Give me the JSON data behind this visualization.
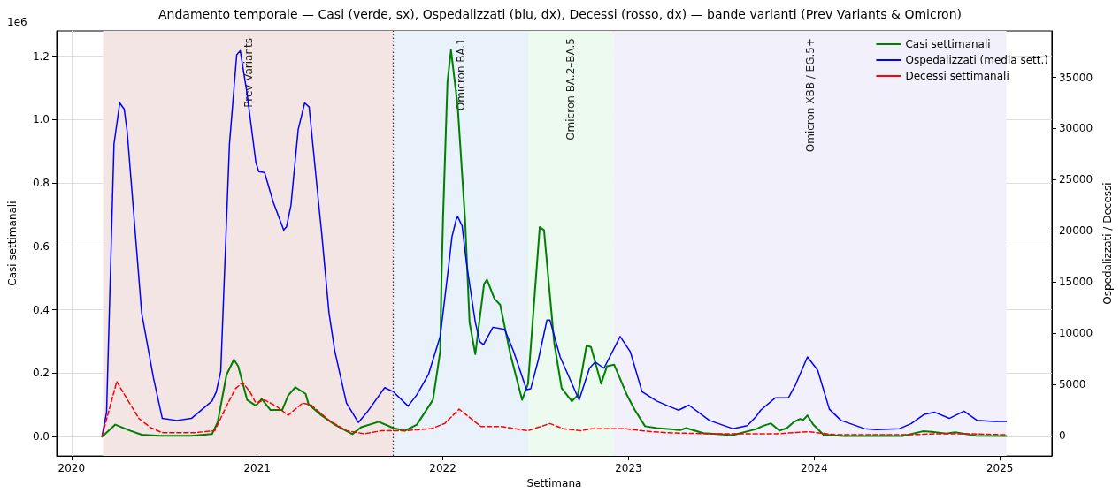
{
  "chart_data": {
    "type": "line",
    "title": "Andamento temporale — Casi (verde, sx), Ospedalizzati (blu, dx), Decessi (rosso, dx) — bande varianti (Prev Variants & Omicron)",
    "xlabel": "Settimana",
    "ylabel": "Casi settimanali",
    "y2label": "Ospedalizzati / Decessi",
    "annotations": [
      "1e6"
    ],
    "xlim": [
      2019.92,
      2025.28
    ],
    "xticks": [
      2020,
      2021,
      2022,
      2023,
      2024,
      2025
    ],
    "ylim": [
      -0.061,
      1.28
    ],
    "yticks": [
      {
        "value": 0,
        "label": "0.0"
      },
      0.2,
      0.4,
      0.6,
      0.8,
      {
        "value": 1,
        "label": "1.0"
      },
      1.2
    ],
    "y2lim": [
      -1970,
      39530
    ],
    "y2ticks": [
      0,
      5000,
      10000,
      15000,
      20000,
      25000,
      30000,
      35000
    ],
    "grid": true,
    "legend": "top right",
    "marker": "none",
    "bands": [
      {
        "axis": "x",
        "from": 2020.17,
        "to": 2021.735,
        "label": "Prev Variants",
        "color": "#f4e5e5"
      },
      {
        "axis": "x",
        "from": 2021.735,
        "to": 2022.46,
        "label": "Omicron BA.1",
        "color": "#e9f1fb"
      },
      {
        "axis": "x",
        "from": 2022.46,
        "to": 2022.92,
        "label": "Omicron BA.2–BA.5",
        "color": "#edfaf0"
      },
      {
        "axis": "x",
        "from": 2022.92,
        "to": 2025.035,
        "label": "Omicron XBB / EG.5+",
        "color": "#f2f0fb"
      }
    ],
    "ref_lines": [
      {
        "axis": "x",
        "value": 2021.735,
        "label": null,
        "color": "#333333",
        "line_style": "dotted"
      }
    ],
    "series": [
      {
        "name": "Casi settimanali",
        "color": "#008000",
        "line_style": "solid",
        "x": [
          2020.165,
          2020.236,
          2020.315,
          2020.378,
          2020.473,
          2020.646,
          2020.757,
          2020.788,
          2020.835,
          2020.875,
          2020.898,
          2020.946,
          2020.993,
          2021.025,
          2021.072,
          2021.135,
          2021.167,
          2021.206,
          2021.261,
          2021.277,
          2021.34,
          2021.418,
          2021.513,
          2021.56,
          2021.655,
          2021.734,
          2021.797,
          2021.86,
          2021.947,
          2021.986,
          2021.993,
          2022.001,
          2022.025,
          2022.044,
          2022.08,
          2022.12,
          2022.144,
          2022.175,
          2022.222,
          2022.238,
          2022.278,
          2022.309,
          2022.364,
          2022.427,
          2022.459,
          2022.522,
          2022.545,
          2022.6,
          2022.64,
          2022.695,
          2022.727,
          2022.774,
          2022.798,
          2022.853,
          2022.884,
          2022.923,
          2022.993,
          2023.034,
          2023.089,
          2023.152,
          2023.278,
          2023.31,
          2023.404,
          2023.562,
          2023.688,
          2023.72,
          2023.767,
          2023.814,
          2023.853,
          2023.893,
          2023.924,
          2023.94,
          2023.964,
          2023.995,
          2024.05,
          2024.16,
          2024.476,
          2024.586,
          2024.634,
          2024.712,
          2024.76,
          2024.87,
          2025.035
        ],
        "values": [
          0,
          0.038,
          0.019,
          0.006,
          0.003,
          0.003,
          0.008,
          0.047,
          0.195,
          0.243,
          0.222,
          0.116,
          0.098,
          0.119,
          0.084,
          0.084,
          0.13,
          0.156,
          0.135,
          0.102,
          0.07,
          0.038,
          0.008,
          0.03,
          0.047,
          0.027,
          0.019,
          0.038,
          0.116,
          0.269,
          0.5,
          0.684,
          1.118,
          1.22,
          1.044,
          0.684,
          0.361,
          0.26,
          0.481,
          0.495,
          0.435,
          0.416,
          0.26,
          0.116,
          0.167,
          0.661,
          0.652,
          0.296,
          0.153,
          0.112,
          0.13,
          0.287,
          0.283,
          0.167,
          0.222,
          0.227,
          0.13,
          0.084,
          0.033,
          0.027,
          0.021,
          0.027,
          0.011,
          0.005,
          0.024,
          0.033,
          0.042,
          0.019,
          0.027,
          0.047,
          0.056,
          0.052,
          0.067,
          0.038,
          0.006,
          0.002,
          0.002,
          0.017,
          0.015,
          0.01,
          0.014,
          0.003,
          0.002
        ]
      },
      {
        "name": "Ospedalizzati (media sett.)",
        "color": "#0000ff",
        "line_style": "solid",
        "axis": "y2",
        "x": [
          2020.165,
          2020.189,
          2020.229,
          2020.26,
          2020.284,
          2020.3,
          2020.378,
          2020.441,
          2020.489,
          2020.567,
          2020.646,
          2020.757,
          2020.78,
          2020.804,
          2020.851,
          2020.89,
          2020.909,
          2020.946,
          2020.993,
          2021.009,
          2021.04,
          2021.087,
          2021.143,
          2021.158,
          2021.182,
          2021.221,
          2021.256,
          2021.28,
          2021.324,
          2021.348,
          2021.387,
          2021.418,
          2021.481,
          2021.545,
          2021.592,
          2021.687,
          2021.734,
          2021.813,
          2021.86,
          2021.923,
          2021.986,
          2022.033,
          2022.049,
          2022.072,
          2022.08,
          2022.104,
          2022.128,
          2022.175,
          2022.199,
          2022.219,
          2022.27,
          2022.333,
          2022.38,
          2022.451,
          2022.474,
          2022.514,
          2022.561,
          2022.577,
          2022.632,
          2022.734,
          2022.79,
          2022.821,
          2022.868,
          2022.955,
          2023.01,
          2023.073,
          2023.152,
          2023.215,
          2023.27,
          2023.325,
          2023.436,
          2023.562,
          2023.64,
          2023.688,
          2023.712,
          2023.79,
          2023.861,
          2023.9,
          2023.964,
          2024.019,
          2024.082,
          2024.145,
          2024.271,
          2024.334,
          2024.46,
          2024.523,
          2024.594,
          2024.649,
          2024.728,
          2024.807,
          2024.878,
          2024.965,
          2025.035
        ],
        "values": [
          0,
          2300,
          28500,
          32500,
          31900,
          29700,
          12000,
          5700,
          1700,
          1500,
          1700,
          3400,
          4300,
          6300,
          28500,
          37200,
          37600,
          33400,
          26700,
          25800,
          25700,
          22800,
          20100,
          20400,
          22500,
          29900,
          32500,
          32100,
          24000,
          19700,
          12000,
          8300,
          3200,
          1300,
          2300,
          4700,
          4300,
          2900,
          4000,
          6000,
          9700,
          16800,
          19400,
          21100,
          21400,
          20500,
          16800,
          11100,
          9200,
          8900,
          10600,
          10400,
          8300,
          4500,
          4600,
          7400,
          11300,
          11300,
          7700,
          3500,
          6600,
          7200,
          6600,
          9700,
          8200,
          4300,
          3400,
          2900,
          2500,
          3000,
          1500,
          700,
          1000,
          1900,
          2500,
          3700,
          3700,
          5000,
          7700,
          6400,
          2600,
          1500,
          700,
          600,
          700,
          1200,
          2100,
          2300,
          1700,
          2400,
          1500,
          1400,
          1400
        ]
      },
      {
        "name": "Decessi settimanali",
        "color": "#ff0000",
        "line_style": "dashed",
        "axis": "y2",
        "x": [
          2020.165,
          2020.244,
          2020.276,
          2020.363,
          2020.426,
          2020.489,
          2020.662,
          2020.772,
          2020.835,
          2020.883,
          2020.922,
          2020.961,
          2020.993,
          2021.04,
          2021.103,
          2021.167,
          2021.245,
          2021.292,
          2021.387,
          2021.481,
          2021.577,
          2021.671,
          2021.797,
          2021.938,
          2022.01,
          2022.088,
          2022.206,
          2022.317,
          2022.459,
          2022.577,
          2022.648,
          2022.742,
          2022.805,
          2022.979,
          2023.073,
          2023.2,
          2023.436,
          2023.688,
          2023.8,
          2023.972,
          2024.113,
          2024.507,
          2024.665,
          2024.823,
          2025.035
        ],
        "values": [
          0,
          5300,
          4300,
          1700,
          800,
          300,
          300,
          500,
          2900,
          4600,
          5200,
          4300,
          3200,
          3500,
          2900,
          2000,
          3200,
          3000,
          1500,
          500,
          200,
          500,
          500,
          700,
          1200,
          2600,
          900,
          900,
          500,
          1200,
          700,
          500,
          700,
          700,
          500,
          300,
          200,
          200,
          200,
          400,
          100,
          100,
          200,
          200,
          100
        ]
      }
    ]
  }
}
